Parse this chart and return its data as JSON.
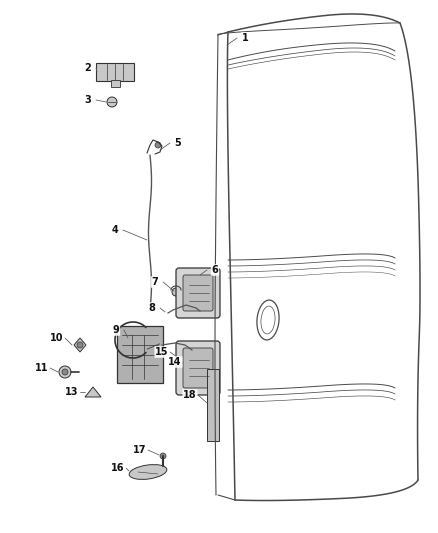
{
  "bg_color": "#ffffff",
  "fig_width": 4.38,
  "fig_height": 5.33,
  "dpi": 100,
  "line_color": "#3a3a3a",
  "door_line_color": "#4a4a4a",
  "part_fill": "#c8c8c8",
  "part_edge": "#333333"
}
